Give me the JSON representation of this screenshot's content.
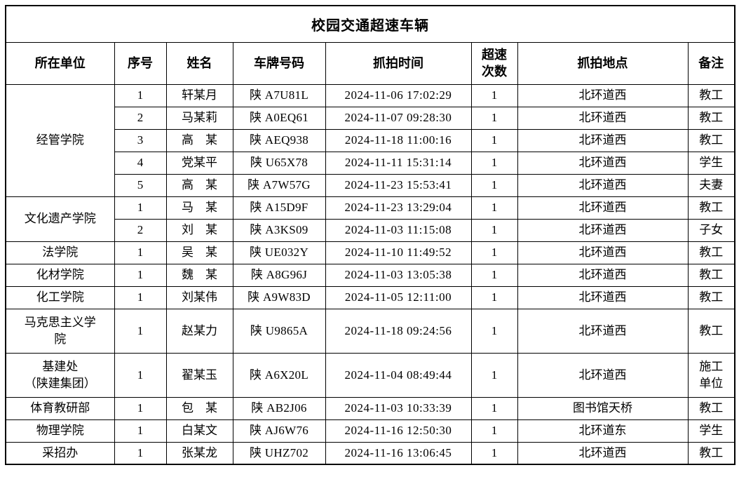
{
  "title": "校园交通超速车辆",
  "columns": [
    "所在单位",
    "序号",
    "姓名",
    "车牌号码",
    "抓拍时间",
    "超速\n次数",
    "抓拍地点",
    "备注"
  ],
  "groups": [
    {
      "unit": "经管学院",
      "rows": [
        {
          "no": "1",
          "name": "轩某月",
          "plate": "陕 A7U81L",
          "time": "2024-11-06 17:02:29",
          "count": "1",
          "location": "北环道西",
          "remark": "教工"
        },
        {
          "no": "2",
          "name": "马某莉",
          "plate": "陕 A0EQ61",
          "time": "2024-11-07 09:28:30",
          "count": "1",
          "location": "北环道西",
          "remark": "教工"
        },
        {
          "no": "3",
          "name": "高　某",
          "plate": "陕 AEQ938",
          "time": "2024-11-18 11:00:16",
          "count": "1",
          "location": "北环道西",
          "remark": "教工"
        },
        {
          "no": "4",
          "name": "党某平",
          "plate": "陕 U65X78",
          "time": "2024-11-11 15:31:14",
          "count": "1",
          "location": "北环道西",
          "remark": "学生"
        },
        {
          "no": "5",
          "name": "高　某",
          "plate": "陕 A7W57G",
          "time": "2024-11-23 15:53:41",
          "count": "1",
          "location": "北环道西",
          "remark": "夫妻"
        }
      ]
    },
    {
      "unit": "文化遗产学院",
      "rows": [
        {
          "no": "1",
          "name": "马　某",
          "plate": "陕 A15D9F",
          "time": "2024-11-23 13:29:04",
          "count": "1",
          "location": "北环道西",
          "remark": "教工"
        },
        {
          "no": "2",
          "name": "刘　某",
          "plate": "陕 A3KS09",
          "time": "2024-11-03 11:15:08",
          "count": "1",
          "location": "北环道西",
          "remark": "子女"
        }
      ]
    },
    {
      "unit": "法学院",
      "rows": [
        {
          "no": "1",
          "name": "吴　某",
          "plate": "陕 UE032Y",
          "time": "2024-11-10 11:49:52",
          "count": "1",
          "location": "北环道西",
          "remark": "教工"
        }
      ]
    },
    {
      "unit": "化材学院",
      "rows": [
        {
          "no": "1",
          "name": "魏　某",
          "plate": "陕 A8G96J",
          "time": "2024-11-03 13:05:38",
          "count": "1",
          "location": "北环道西",
          "remark": "教工"
        }
      ]
    },
    {
      "unit": "化工学院",
      "rows": [
        {
          "no": "1",
          "name": "刘某伟",
          "plate": "陕 A9W83D",
          "time": "2024-11-05 12:11:00",
          "count": "1",
          "location": "北环道西",
          "remark": "教工"
        }
      ]
    },
    {
      "unit": "马克思主义学\n院",
      "rows": [
        {
          "no": "1",
          "name": "赵某力",
          "plate": "陕 U9865A",
          "time": "2024-11-18 09:24:56",
          "count": "1",
          "location": "北环道西",
          "remark": "教工"
        }
      ]
    },
    {
      "unit": "基建处\n（陕建集团）",
      "rows": [
        {
          "no": "1",
          "name": "翟某玉",
          "plate": "陕 A6X20L",
          "time": "2024-11-04 08:49:44",
          "count": "1",
          "location": "北环道西",
          "remark": "施工\n单位"
        }
      ]
    },
    {
      "unit": "体育教研部",
      "rows": [
        {
          "no": "1",
          "name": "包　某",
          "plate": "陕 AB2J06",
          "time": "2024-11-03 10:33:39",
          "count": "1",
          "location": "图书馆天桥",
          "remark": "教工"
        }
      ]
    },
    {
      "unit": "物理学院",
      "rows": [
        {
          "no": "1",
          "name": "白某文",
          "plate": "陕 AJ6W76",
          "time": "2024-11-16 12:50:30",
          "count": "1",
          "location": "北环道东",
          "remark": "学生"
        }
      ]
    },
    {
      "unit": "采招办",
      "rows": [
        {
          "no": "1",
          "name": "张某龙",
          "plate": "陕 UHZ702",
          "time": "2024-11-16 13:06:45",
          "count": "1",
          "location": "北环道西",
          "remark": "教工"
        }
      ]
    }
  ],
  "colors": {
    "text": "#000000",
    "border": "#000000",
    "background": "#ffffff"
  }
}
